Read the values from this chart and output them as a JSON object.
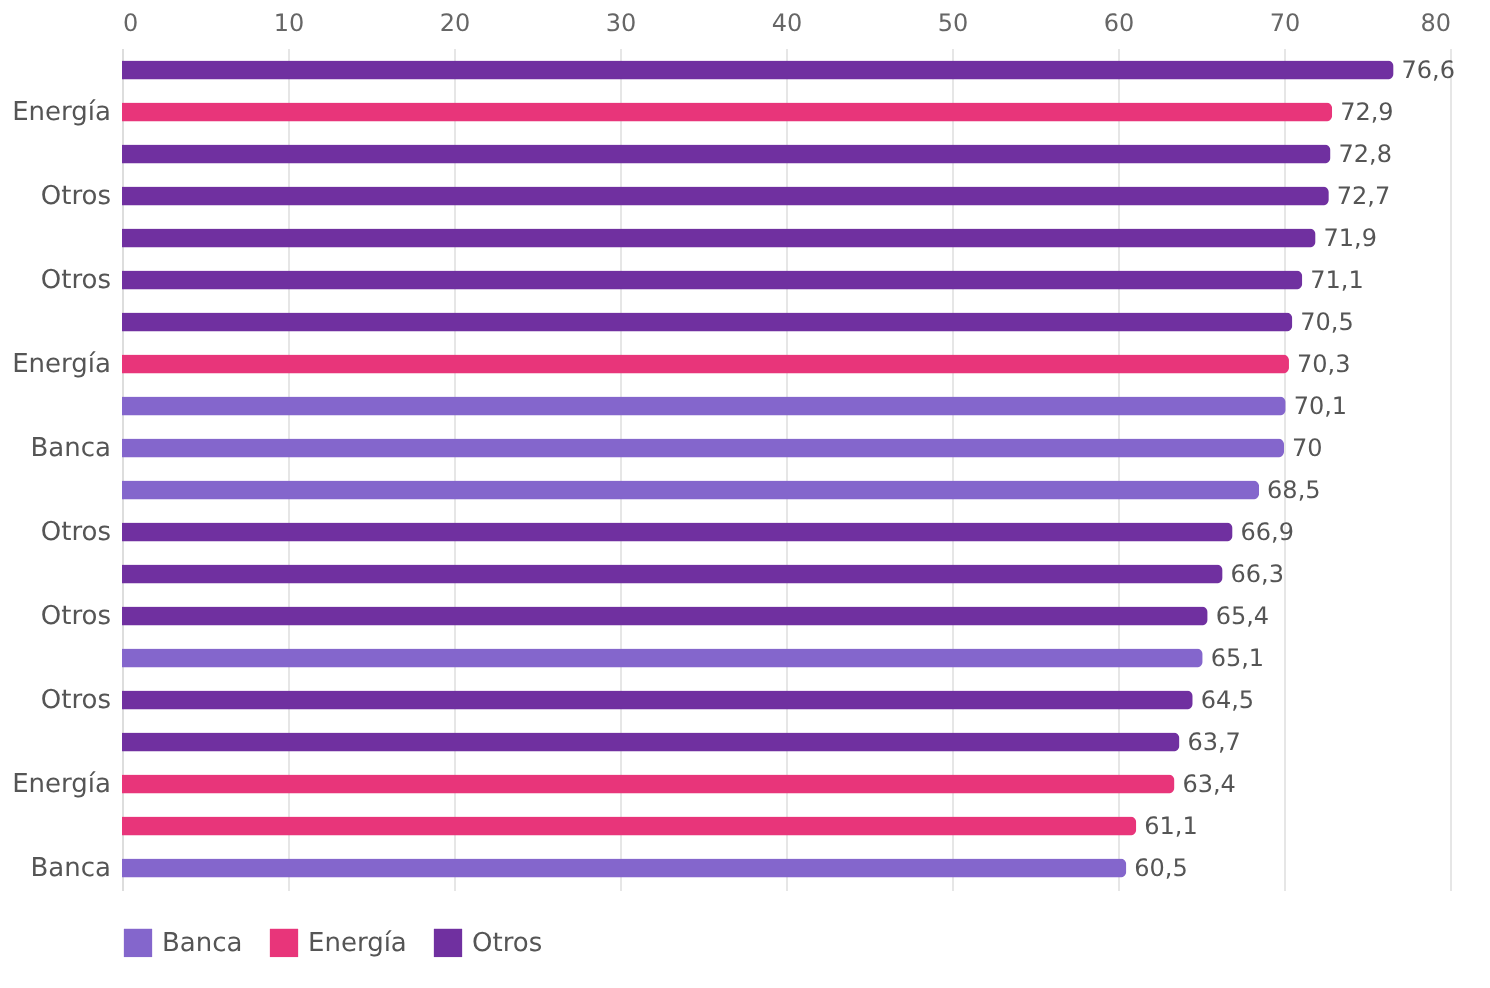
{
  "chart_data": {
    "type": "bar",
    "orientation": "horizontal",
    "categories": [
      null,
      "Energía",
      null,
      "Otros",
      null,
      "Otros",
      null,
      "Energía",
      null,
      "Banca",
      null,
      "Otros",
      null,
      "Otros",
      null,
      "Otros",
      null,
      "Energía",
      null,
      "Banca"
    ],
    "series": [
      {
        "name": "Banca",
        "color": "#8466cc",
        "values": [
          null,
          null,
          null,
          null,
          null,
          null,
          null,
          null,
          70.1,
          70,
          68.5,
          null,
          null,
          null,
          65.1,
          null,
          null,
          null,
          null,
          60.5
        ],
        "value_labels": [
          null,
          null,
          null,
          null,
          null,
          null,
          null,
          null,
          "70,1",
          "70",
          "68,5",
          null,
          null,
          null,
          "65,1",
          null,
          null,
          null,
          null,
          "60,5"
        ]
      },
      {
        "name": "Energía",
        "color": "#e8357a",
        "values": [
          null,
          72.9,
          null,
          null,
          null,
          null,
          null,
          70.3,
          null,
          null,
          null,
          null,
          null,
          null,
          null,
          null,
          null,
          63.4,
          61.1,
          null
        ],
        "value_labels": [
          null,
          "72,9",
          null,
          null,
          null,
          null,
          null,
          "70,3",
          null,
          null,
          null,
          null,
          null,
          null,
          null,
          null,
          null,
          "63,4",
          "61,1",
          null
        ]
      },
      {
        "name": "Otros",
        "color": "#7030a0",
        "values": [
          76.6,
          null,
          72.8,
          72.7,
          71.9,
          71.1,
          70.5,
          null,
          null,
          null,
          null,
          66.9,
          66.3,
          65.4,
          null,
          64.5,
          63.7,
          null,
          null,
          null
        ],
        "value_labels": [
          "76,6",
          null,
          "72,8",
          "72,7",
          "71,9",
          "71,1",
          "70,5",
          null,
          null,
          null,
          null,
          "66,9",
          "66,3",
          "65,4",
          null,
          "64,5",
          "63,7",
          null,
          null,
          null
        ]
      }
    ],
    "xlim": [
      0,
      80
    ],
    "xticks": [
      0,
      10,
      20,
      30,
      40,
      50,
      60,
      70,
      80
    ],
    "grid": "x",
    "legend": "bottom"
  }
}
